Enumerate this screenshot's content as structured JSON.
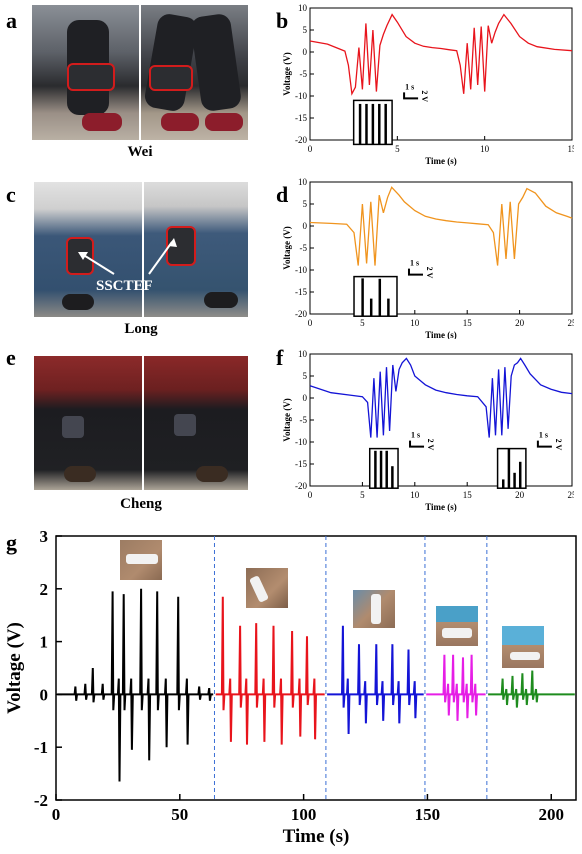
{
  "panels": {
    "a": "a",
    "b": "b",
    "c": "c",
    "d": "d",
    "e": "e",
    "f": "f",
    "g": "g"
  },
  "photos": {
    "a_caption": "Wei",
    "c_caption": "Long",
    "c_label": "SSCTEF",
    "e_caption": "Cheng"
  },
  "colors": {
    "b": "#e8141c",
    "d": "#f0941e",
    "f": "#1414d6",
    "g_series": [
      "#000000",
      "#e8141c",
      "#1414d6",
      "#e61ee6",
      "#1e8c1e"
    ],
    "divider": "#3b6fd6"
  },
  "chart_data": [
    {
      "id": "b",
      "type": "line",
      "xlabel": "Time (s)",
      "ylabel": "Voltage (V)",
      "xlim": [
        0,
        15
      ],
      "ylim": [
        -20,
        10
      ],
      "xticks": [
        0,
        5,
        10,
        15
      ],
      "yticks": [
        10,
        5,
        0,
        -5,
        -10,
        -15,
        -20
      ],
      "scale_bar": {
        "time": "1 s",
        "voltage": "2 V"
      },
      "series": [
        {
          "x": [
            0,
            1,
            1.5,
            2.0,
            2.2,
            2.4,
            2.6,
            2.8,
            3.0,
            3.2,
            3.4,
            3.6,
            3.8,
            4.0,
            4.2,
            4.4,
            4.7,
            5.0,
            5.5,
            6.0,
            6.5,
            7.0,
            7.5,
            8.0,
            8.4,
            8.6,
            8.8,
            9.0,
            9.2,
            9.4,
            9.6,
            9.8,
            10.0,
            10.2,
            10.4,
            10.6,
            10.8,
            11.1,
            11.5,
            12.0,
            12.5,
            13.0,
            14.0,
            15.0
          ],
          "y": [
            2.5,
            1.8,
            1.0,
            0.2,
            -3.0,
            -9.5,
            -8.0,
            1.0,
            -8.5,
            6.5,
            -7.5,
            5.0,
            -9.0,
            1.5,
            4.0,
            6.0,
            8.5,
            6.8,
            3.5,
            2.0,
            1.3,
            1.0,
            0.8,
            0.5,
            0.3,
            -3.0,
            -9.5,
            2.0,
            -8.5,
            5.5,
            -7.5,
            5.8,
            -9.0,
            6.0,
            2.0,
            4.5,
            6.5,
            8.5,
            6.5,
            3.5,
            2.0,
            1.2,
            0.6,
            0.3
          ]
        }
      ],
      "insets": [
        {
          "x": [
            2.5,
            4.7
          ],
          "y": [
            -21,
            -11
          ],
          "pulses": [
            -11.8,
            -11.8,
            -11.8,
            -11.8,
            -11.8
          ]
        }
      ]
    },
    {
      "id": "d",
      "type": "line",
      "xlabel": "Time (s)",
      "ylabel": "Voltage (V)",
      "xlim": [
        0,
        25
      ],
      "ylim": [
        -20,
        10
      ],
      "xticks": [
        0,
        5,
        10,
        15,
        20,
        25
      ],
      "yticks": [
        10,
        5,
        0,
        -5,
        -10,
        -15,
        -20
      ],
      "scale_bar": {
        "time": "1 s",
        "voltage": "2 V"
      },
      "series": [
        {
          "x": [
            0,
            2,
            3.5,
            4.2,
            4.6,
            5.0,
            5.4,
            5.8,
            6.2,
            6.6,
            7.0,
            7.4,
            7.8,
            8.5,
            9.0,
            10,
            11,
            12,
            13,
            14,
            15,
            16,
            17,
            17.5,
            17.9,
            18.3,
            18.7,
            19.1,
            19.5,
            19.9,
            20.3,
            20.7,
            21.5,
            22.5,
            23.5,
            24.5,
            25
          ],
          "y": [
            0.8,
            0.6,
            0.4,
            -1.5,
            -9.0,
            5.0,
            -8.5,
            5.5,
            -9.0,
            7.0,
            3.0,
            6.5,
            8.8,
            7.0,
            5.5,
            3.5,
            2.2,
            1.6,
            1.2,
            0.9,
            0.7,
            0.5,
            0.3,
            -1.5,
            -9.0,
            5.0,
            -7.5,
            5.5,
            -7.5,
            5.0,
            6.5,
            8.5,
            7.5,
            4.5,
            3.0,
            2.2,
            1.8
          ]
        }
      ],
      "insets": [
        {
          "x": [
            4.2,
            8.3
          ],
          "y": [
            -20.5,
            -11.5
          ],
          "pulses": [
            -11.9,
            -16.5,
            -12.0,
            -16.5
          ]
        }
      ]
    },
    {
      "id": "f",
      "type": "line",
      "xlabel": "Time (s)",
      "ylabel": "Voltage (V)",
      "xlim": [
        0,
        25
      ],
      "ylim": [
        -20,
        10
      ],
      "xticks": [
        0,
        5,
        10,
        15,
        20,
        25
      ],
      "yticks": [
        10,
        5,
        0,
        -5,
        -10,
        -15,
        -20
      ],
      "scale_bar": {
        "time": "1 s",
        "voltage": "2 V"
      },
      "series": [
        {
          "x": [
            0,
            2,
            4,
            5.0,
            5.5,
            5.8,
            6.1,
            6.4,
            6.7,
            7.0,
            7.3,
            7.6,
            7.9,
            8.2,
            8.5,
            8.8,
            9.2,
            9.6,
            10,
            11,
            12,
            13,
            14,
            15,
            16,
            16.8,
            17.1,
            17.4,
            17.7,
            18.0,
            18.3,
            18.6,
            18.9,
            19.2,
            19.5,
            19.8,
            20.1,
            20.5,
            21,
            22,
            23,
            24,
            25
          ],
          "y": [
            2.8,
            1.2,
            0.6,
            0.3,
            -1.0,
            -9.0,
            4.5,
            -9.0,
            6.0,
            -8.5,
            7.0,
            -7.5,
            7.5,
            1.5,
            6.5,
            8.0,
            9.0,
            7.5,
            5.0,
            3.0,
            1.8,
            1.2,
            0.8,
            0.5,
            0.3,
            -2.0,
            -9.0,
            4.5,
            -8.5,
            6.5,
            -8.5,
            7.0,
            -7.0,
            5.0,
            7.5,
            8.0,
            9.0,
            7.5,
            5.5,
            3.0,
            2.0,
            1.3,
            1.0
          ]
        }
      ],
      "insets": [
        {
          "x": [
            5.7,
            8.4
          ],
          "y": [
            -20.5,
            -11.5
          ],
          "pulses": [
            -12.0,
            -12.0,
            -12.0,
            -15.5
          ]
        },
        {
          "x": [
            17.9,
            20.6
          ],
          "y": [
            -20.5,
            -11.5
          ],
          "pulses": [
            -18.5,
            -11.5,
            -17.0,
            -14.5
          ]
        }
      ]
    },
    {
      "id": "g",
      "type": "line",
      "xlabel": "Time (s)",
      "ylabel": "Voltage (V)",
      "xlim": [
        0,
        210
      ],
      "ylim": [
        -2,
        3
      ],
      "xticks": [
        0,
        50,
        100,
        150,
        200
      ],
      "yticks": [
        3,
        2,
        1,
        0,
        -1,
        -2
      ],
      "dividers": [
        64,
        109,
        149,
        174
      ],
      "segments": [
        {
          "baseline": 0,
          "pulses": [
            {
              "t": 8,
              "hi": 0.15,
              "lo": -0.12
            },
            {
              "t": 12,
              "hi": 0.2,
              "lo": -0.1
            },
            {
              "t": 15,
              "hi": 0.5,
              "lo": -0.15
            },
            {
              "t": 19,
              "hi": 0.2,
              "lo": -0.1
            },
            {
              "t": 23,
              "hi": 1.95,
              "lo": -0.3
            },
            {
              "t": 25.5,
              "hi": 0.3,
              "lo": -1.65
            },
            {
              "t": 27.5,
              "hi": 1.9,
              "lo": -0.3
            },
            {
              "t": 30.5,
              "hi": 0.3,
              "lo": -1.05
            },
            {
              "t": 34.5,
              "hi": 2.0,
              "lo": -0.3
            },
            {
              "t": 37.5,
              "hi": 0.3,
              "lo": -1.25
            },
            {
              "t": 41,
              "hi": 1.95,
              "lo": -0.3
            },
            {
              "t": 44.5,
              "hi": 0.3,
              "lo": -1.0
            },
            {
              "t": 49.5,
              "hi": 1.85,
              "lo": -0.3
            },
            {
              "t": 53,
              "hi": 0.3,
              "lo": -0.95
            },
            {
              "t": 58,
              "hi": 0.15,
              "lo": -0.1
            },
            {
              "t": 62,
              "hi": 0.12,
              "lo": -0.12
            }
          ]
        },
        {
          "baseline": 0,
          "pulses": [
            {
              "t": 67.5,
              "hi": 1.85,
              "lo": -0.3
            },
            {
              "t": 70.5,
              "hi": 0.3,
              "lo": -0.9
            },
            {
              "t": 74.5,
              "hi": 1.3,
              "lo": -0.25
            },
            {
              "t": 77,
              "hi": 0.3,
              "lo": -0.95
            },
            {
              "t": 81,
              "hi": 1.35,
              "lo": -0.25
            },
            {
              "t": 84,
              "hi": 0.3,
              "lo": -0.9
            },
            {
              "t": 88,
              "hi": 1.3,
              "lo": -0.25
            },
            {
              "t": 91,
              "hi": 0.3,
              "lo": -0.95
            },
            {
              "t": 95.5,
              "hi": 1.2,
              "lo": -0.25
            },
            {
              "t": 98.5,
              "hi": 0.3,
              "lo": -0.8
            },
            {
              "t": 101.5,
              "hi": 1.1,
              "lo": -0.2
            },
            {
              "t": 104.5,
              "hi": 0.3,
              "lo": -0.85
            }
          ]
        },
        {
          "baseline": 0,
          "pulses": [
            {
              "t": 116,
              "hi": 1.3,
              "lo": -0.25
            },
            {
              "t": 118,
              "hi": 0.3,
              "lo": -0.75
            },
            {
              "t": 122.5,
              "hi": 0.95,
              "lo": -0.2
            },
            {
              "t": 125,
              "hi": 0.25,
              "lo": -0.55
            },
            {
              "t": 129.5,
              "hi": 0.95,
              "lo": -0.2
            },
            {
              "t": 132,
              "hi": 0.25,
              "lo": -0.5
            },
            {
              "t": 136,
              "hi": 0.95,
              "lo": -0.2
            },
            {
              "t": 138.5,
              "hi": 0.25,
              "lo": -0.55
            },
            {
              "t": 142.5,
              "hi": 0.85,
              "lo": -0.2
            },
            {
              "t": 145,
              "hi": 0.25,
              "lo": -0.45
            }
          ]
        },
        {
          "baseline": 0,
          "pulses": [
            {
              "t": 157,
              "hi": 0.75,
              "lo": -0.15
            },
            {
              "t": 158.5,
              "hi": 0.2,
              "lo": -0.4
            },
            {
              "t": 160.5,
              "hi": 0.75,
              "lo": -0.15
            },
            {
              "t": 162,
              "hi": 0.2,
              "lo": -0.5
            },
            {
              "t": 164.5,
              "hi": 0.7,
              "lo": -0.15
            },
            {
              "t": 166,
              "hi": 0.2,
              "lo": -0.45
            },
            {
              "t": 168,
              "hi": 0.75,
              "lo": -0.15
            },
            {
              "t": 169.5,
              "hi": 0.2,
              "lo": -0.4
            }
          ]
        },
        {
          "baseline": 0,
          "pulses": [
            {
              "t": 180.5,
              "hi": 0.3,
              "lo": -0.1
            },
            {
              "t": 182,
              "hi": 0.1,
              "lo": -0.2
            },
            {
              "t": 184.5,
              "hi": 0.35,
              "lo": -0.1
            },
            {
              "t": 186,
              "hi": 0.1,
              "lo": -0.25
            },
            {
              "t": 188.5,
              "hi": 0.4,
              "lo": -0.1
            },
            {
              "t": 190,
              "hi": 0.1,
              "lo": -0.2
            },
            {
              "t": 192.5,
              "hi": 0.45,
              "lo": -0.1
            },
            {
              "t": 194,
              "hi": 0.1,
              "lo": -0.15
            }
          ]
        }
      ]
    }
  ]
}
